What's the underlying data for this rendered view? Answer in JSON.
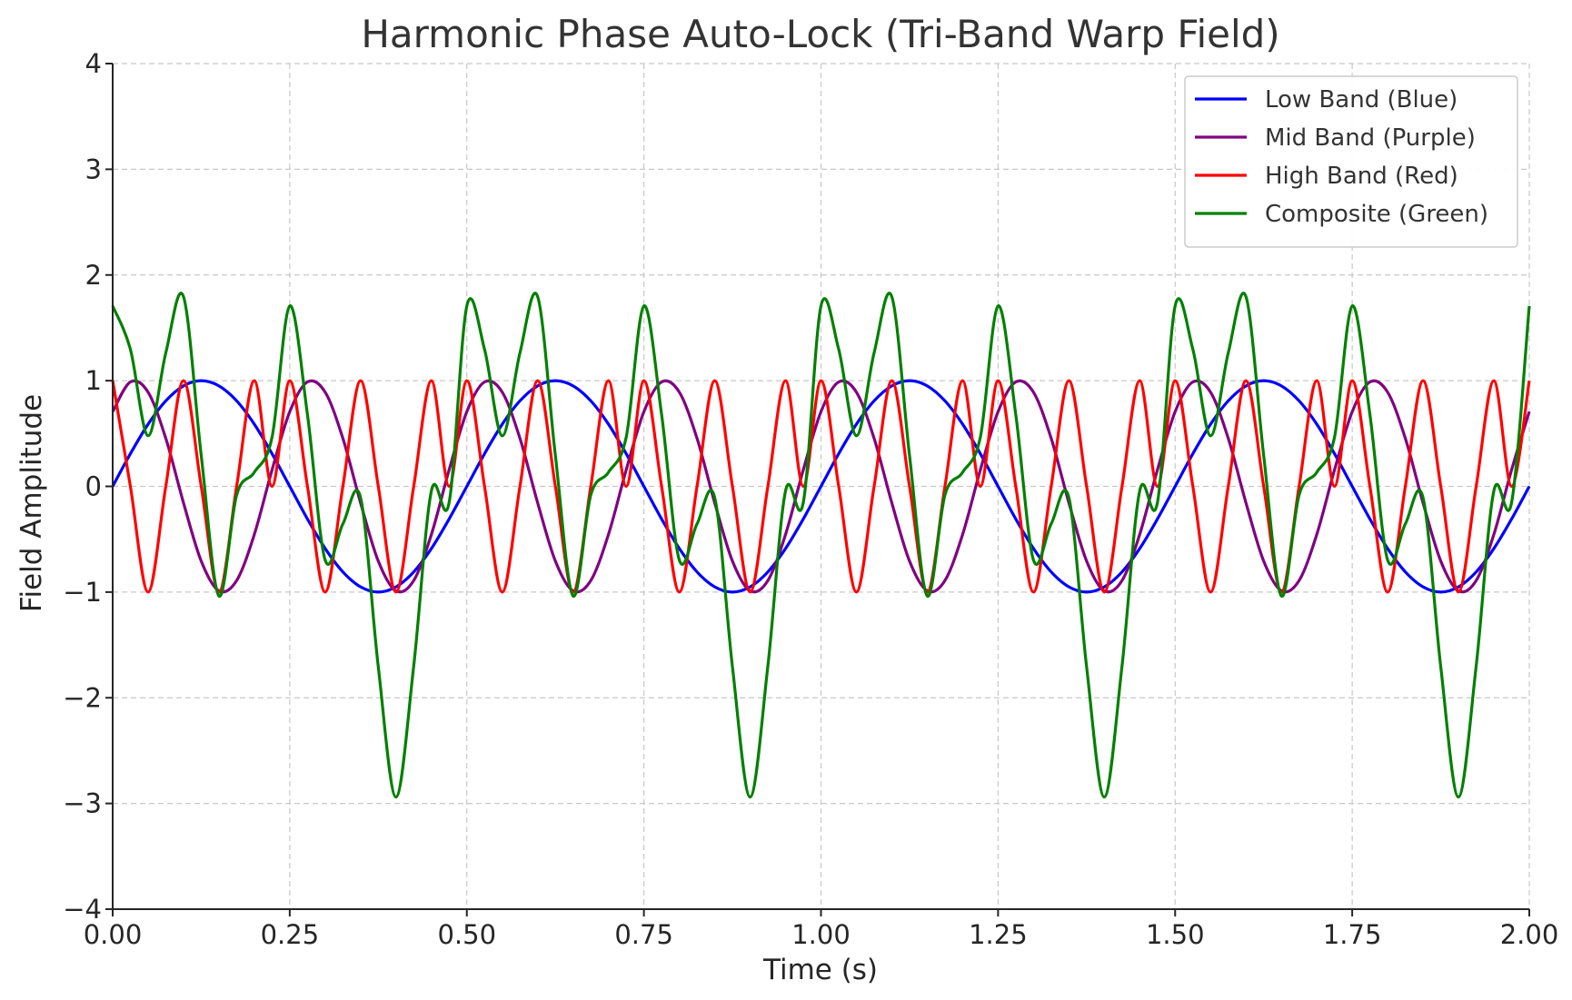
{
  "chart_data": {
    "type": "line",
    "title": "Harmonic Phase Auto-Lock (Tri-Band Warp Field)",
    "xlabel": "Time (s)",
    "ylabel": "Field Amplitude",
    "xlim": [
      0,
      2
    ],
    "ylim": [
      -4,
      4
    ],
    "x_ticks": [
      0,
      0.25,
      0.5,
      0.75,
      1,
      1.25,
      1.5,
      1.75,
      2
    ],
    "x_tick_labels": [
      "0.00",
      "0.25",
      "0.50",
      "0.75",
      "1.00",
      "1.25",
      "1.50",
      "1.75",
      "2.00"
    ],
    "y_ticks": [
      -4,
      -3,
      -2,
      -1,
      0,
      1,
      2,
      3,
      4
    ],
    "y_tick_labels": [
      "−4",
      "−3",
      "−2",
      "−1",
      "0",
      "1",
      "2",
      "3",
      "4"
    ],
    "grid": true,
    "legend_position": "top-right",
    "x": [
      0,
      0.025,
      0.05,
      0.075,
      0.1,
      0.125,
      0.15,
      0.175,
      0.2,
      0.225,
      0.25,
      0.275,
      0.3,
      0.325,
      0.35,
      0.375,
      0.4,
      0.425,
      0.45,
      0.475,
      0.5,
      0.525,
      0.55,
      0.575,
      0.6,
      0.625,
      0.65,
      0.675,
      0.7,
      0.725,
      0.75,
      0.775,
      0.8,
      0.825,
      0.85,
      0.875,
      0.9,
      0.925,
      0.95,
      0.975,
      1,
      1.025,
      1.05,
      1.075,
      1.1,
      1.125,
      1.15,
      1.175,
      1.2,
      1.225,
      1.25,
      1.275,
      1.3,
      1.325,
      1.35,
      1.375,
      1.4,
      1.425,
      1.45,
      1.475,
      1.5,
      1.525,
      1.55,
      1.575,
      1.6,
      1.625,
      1.65,
      1.675,
      1.7,
      1.725,
      1.75,
      1.775,
      1.8,
      1.825,
      1.85,
      1.875,
      1.9,
      1.925,
      1.95,
      1.975,
      2
    ],
    "series": [
      {
        "name": "Low Band (Blue)",
        "color": "#0000ff",
        "values": [
          0,
          0.309,
          0.588,
          0.809,
          0.951,
          1,
          0.951,
          0.809,
          0.588,
          0.309,
          0,
          -0.309,
          -0.588,
          -0.809,
          -0.951,
          -1,
          -0.951,
          -0.809,
          -0.588,
          -0.309,
          0,
          0.309,
          0.588,
          0.809,
          0.951,
          1,
          0.951,
          0.809,
          0.588,
          0.309,
          0,
          -0.309,
          -0.588,
          -0.809,
          -0.951,
          -1,
          -0.951,
          -0.809,
          -0.588,
          -0.309,
          0,
          0.309,
          0.588,
          0.809,
          0.951,
          1,
          0.951,
          0.809,
          0.588,
          0.309,
          0,
          -0.309,
          -0.588,
          -0.809,
          -0.951,
          -1,
          -0.951,
          -0.809,
          -0.588,
          -0.309,
          0,
          0.309,
          0.588,
          0.809,
          0.951,
          1,
          0.951,
          0.809,
          0.588,
          0.309,
          0,
          -0.309,
          -0.588,
          -0.809,
          -0.951,
          -1,
          -0.951,
          -0.809,
          -0.588,
          -0.309,
          0
        ]
      },
      {
        "name": "Mid Band (Purple)",
        "color": "#800080",
        "values": [
          0.707,
          0.988,
          0.891,
          0.454,
          -0.156,
          -0.707,
          -0.988,
          -0.891,
          -0.454,
          0.156,
          0.707,
          0.988,
          0.891,
          0.454,
          -0.156,
          -0.707,
          -0.988,
          -0.891,
          -0.454,
          0.156,
          0.707,
          0.988,
          0.891,
          0.454,
          -0.156,
          -0.707,
          -0.988,
          -0.891,
          -0.454,
          0.156,
          0.707,
          0.988,
          0.891,
          0.454,
          -0.156,
          -0.707,
          -0.988,
          -0.891,
          -0.454,
          0.156,
          0.707,
          0.988,
          0.891,
          0.454,
          -0.156,
          -0.707,
          -0.988,
          -0.891,
          -0.454,
          0.156,
          0.707,
          0.988,
          0.891,
          0.454,
          -0.156,
          -0.707,
          -0.988,
          -0.891,
          -0.454,
          0.156,
          0.707,
          0.988,
          0.891,
          0.454,
          -0.156,
          -0.707,
          -0.988,
          -0.891,
          -0.454,
          0.156,
          0.707,
          0.988,
          0.891,
          0.454,
          -0.156,
          -0.707,
          -0.988,
          -0.891,
          -0.454,
          0.156,
          0.707
        ]
      },
      {
        "name": "High Band (Red)",
        "color": "#ff0000",
        "values": [
          1,
          0,
          -1,
          0,
          1,
          0,
          -1,
          0,
          1,
          0,
          1,
          0,
          -1,
          0,
          1,
          0,
          -1,
          0,
          1,
          0,
          1,
          0,
          -1,
          0,
          1,
          0,
          -1,
          0,
          1,
          0,
          1,
          0,
          -1,
          0,
          1,
          0,
          -1,
          0,
          1,
          0,
          1,
          0,
          -1,
          0,
          1,
          0,
          -1,
          0,
          1,
          0,
          1,
          0,
          -1,
          0,
          1,
          0,
          -1,
          0,
          1,
          0,
          1,
          0,
          -1,
          0,
          1,
          0,
          -1,
          0,
          1,
          0,
          1,
          0,
          -1,
          0,
          1,
          0,
          -1,
          0,
          1,
          0,
          1
        ]
      },
      {
        "name": "Composite (Green)",
        "color": "#008000",
        "values": [
          1.707,
          1.297,
          0.479,
          1.263,
          1.795,
          0.293,
          -1.037,
          -0.082,
          0.134,
          0.465,
          1.707,
          0.679,
          -0.697,
          -0.355,
          -0.107,
          -1.707,
          -2.939,
          -1.7,
          -0.042,
          -0.153,
          1.707,
          1.297,
          0.479,
          1.263,
          1.795,
          0.293,
          -1.037,
          -0.082,
          0.134,
          0.465,
          1.707,
          0.679,
          -0.697,
          -0.355,
          -0.107,
          -1.707,
          -2.939,
          -1.7,
          -0.042,
          -0.153,
          1.707,
          1.297,
          0.479,
          1.263,
          1.795,
          0.293,
          -1.037,
          -0.082,
          0.134,
          0.465,
          1.707,
          0.679,
          -0.697,
          -0.355,
          -0.107,
          -1.707,
          -2.939,
          -1.7,
          -0.042,
          -0.153,
          1.707,
          1.297,
          0.479,
          1.263,
          1.795,
          0.293,
          -1.037,
          -0.082,
          0.134,
          0.465,
          1.707,
          0.679,
          -0.697,
          -0.355,
          -0.107,
          -1.707,
          -2.939,
          -1.7,
          -0.042,
          -0.153,
          1.707
        ]
      }
    ]
  }
}
